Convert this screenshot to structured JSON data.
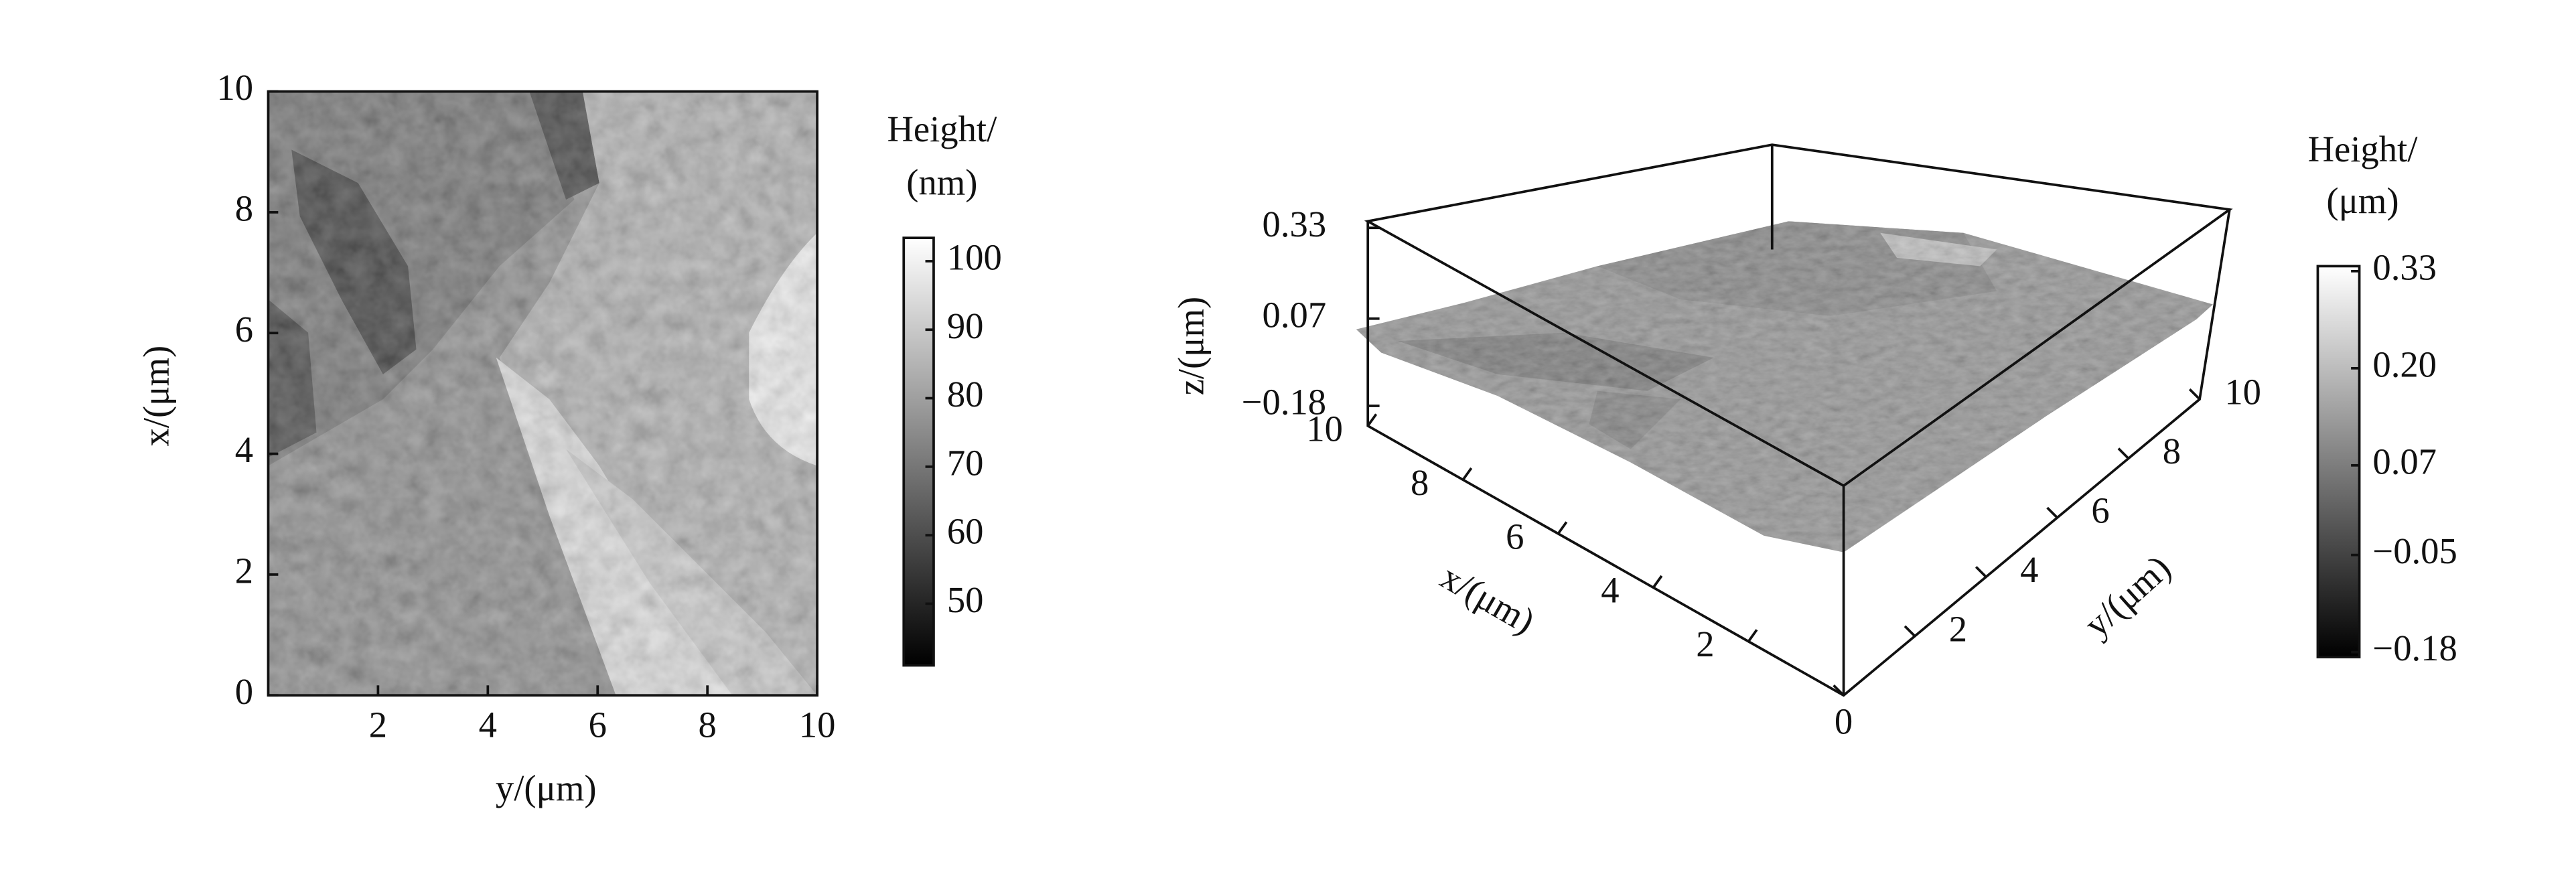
{
  "chart_data": [
    {
      "type": "heatmap",
      "xlabel": "y/(μm)",
      "ylabel": "x/(μm)",
      "xlim": [
        0,
        10
      ],
      "ylim": [
        0,
        10
      ],
      "xticks": [
        2,
        4,
        6,
        8,
        10
      ],
      "yticks": [
        0,
        2,
        4,
        6,
        8,
        10
      ],
      "colorbar": {
        "label": [
          "Height/",
          "(nm)"
        ],
        "lim": [
          41,
          103.4
        ],
        "ticks": [
          50,
          60,
          70,
          80,
          90,
          100
        ]
      }
    },
    {
      "type": "surface3d",
      "xlabel": "x/(μm)",
      "ylabel": "y/(μm)",
      "zlabel": "z/(μm)",
      "xlim": [
        0,
        10
      ],
      "ylim": [
        0,
        10
      ],
      "zlim": [
        -0.18,
        0.33
      ],
      "xticks": [
        2,
        4,
        6,
        8,
        10
      ],
      "yticks": [
        0,
        2,
        4,
        6,
        8,
        10
      ],
      "zticks": [
        {
          "value": -0.18,
          "label": "−0.18"
        },
        0.07,
        0.33
      ],
      "colorbar": {
        "label": [
          "Height/",
          "(μm)"
        ],
        "lim": [
          -0.18,
          0.33
        ],
        "ticks": [
          {
            "value": -0.18,
            "label": "−0.18"
          },
          {
            "value": -0.05,
            "label": "−0.05"
          },
          0.07,
          {
            "value": 0.2,
            "label": "0.20"
          },
          0.33
        ]
      }
    }
  ]
}
